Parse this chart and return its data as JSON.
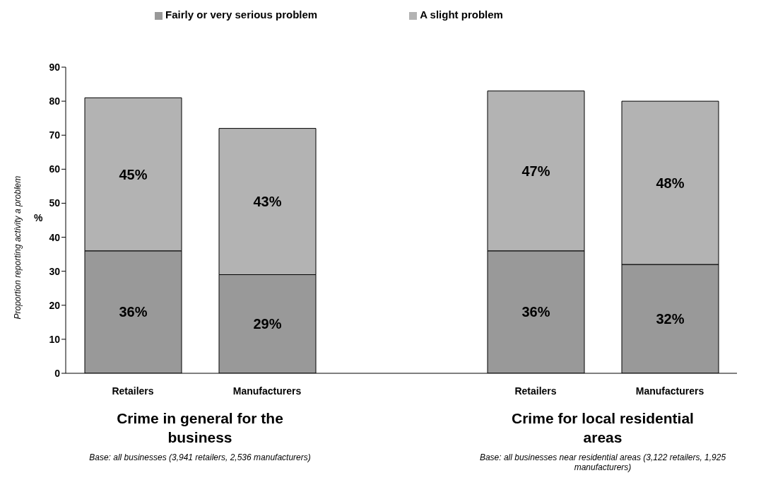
{
  "chart_data": {
    "type": "bar",
    "stacked": true,
    "categories": [
      "Retailers",
      "Manufacturers",
      null,
      "Retailers",
      "Manufacturers"
    ],
    "series": [
      {
        "name": "Fairly or very serious problem",
        "color": "#999999",
        "values": [
          36,
          29,
          null,
          36,
          32
        ],
        "value_labels": [
          "36%",
          "29%",
          null,
          "36%",
          "32%"
        ]
      },
      {
        "name": "A  slight problem",
        "color": "#b3b3b3",
        "values": [
          45,
          43,
          null,
          47,
          48
        ],
        "value_labels": [
          "45%",
          "43%",
          null,
          "47%",
          "48%"
        ]
      }
    ],
    "ylabel": "Proportion reporting activity a problem",
    "ylim": [
      0,
      90
    ],
    "yticks": [
      0,
      10,
      20,
      30,
      40,
      50,
      60,
      70,
      80,
      90
    ],
    "grid": false,
    "legend": "top",
    "annotations": [
      "%",
      "Crime in general for the business",
      "Crime for local residential areas",
      "Base: all businesses (3,941 retailers, 2,536 manufacturers)",
      "Base: all businesses near residential areas (3,122 retailers, 1,925 manufacturers)"
    ]
  }
}
